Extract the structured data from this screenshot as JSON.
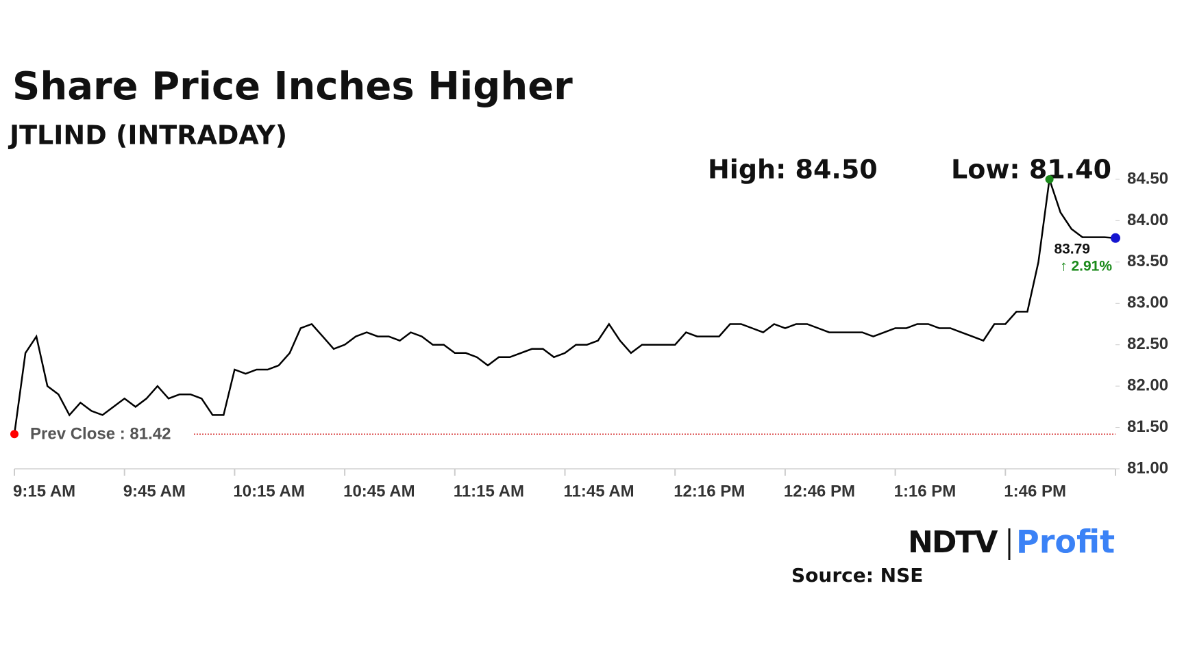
{
  "chart_data": {
    "type": "line",
    "title": "Share Price Inches Higher",
    "subtitle": "JTLIND (INTRADAY)",
    "high_label": "High: 84.50",
    "low_label": "Low: 81.40",
    "prev_close": {
      "value": 81.42,
      "label": "Prev Close : 81.42"
    },
    "change_label": "↑ 2.91%",
    "source": "Source: NSE",
    "logo": [
      "NDTV",
      "Profit"
    ],
    "color": "#000000",
    "categories": [
      "9:15 AM",
      null,
      null,
      null,
      null,
      null,
      null,
      null,
      null,
      null,
      "9:45 AM",
      null,
      null,
      null,
      null,
      null,
      null,
      null,
      null,
      null,
      "10:15 AM",
      null,
      null,
      null,
      null,
      null,
      null,
      null,
      null,
      null,
      "10:45 AM",
      null,
      null,
      null,
      null,
      null,
      null,
      null,
      null,
      null,
      "11:15 AM",
      null,
      null,
      null,
      null,
      null,
      null,
      null,
      null,
      null,
      "11:45 AM",
      null,
      null,
      null,
      null,
      null,
      null,
      null,
      null,
      null,
      "12:16 PM",
      null,
      null,
      null,
      null,
      null,
      null,
      null,
      null,
      null,
      "12:46 PM",
      null,
      null,
      null,
      null,
      null,
      null,
      null,
      null,
      null,
      "1:16 PM",
      null,
      null,
      null,
      null,
      null,
      null,
      null,
      null,
      null,
      "1:46 PM",
      null,
      null,
      null,
      null,
      null,
      null,
      null,
      null,
      null,
      null
    ],
    "values": [
      81.42,
      82.4,
      82.6,
      82.0,
      81.9,
      81.65,
      81.8,
      81.7,
      81.65,
      81.75,
      81.85,
      81.75,
      81.85,
      82.0,
      81.85,
      81.9,
      81.9,
      81.85,
      81.65,
      81.65,
      82.2,
      82.15,
      82.2,
      82.2,
      82.25,
      82.4,
      82.7,
      82.75,
      82.6,
      82.45,
      82.5,
      82.6,
      82.65,
      82.6,
      82.6,
      82.55,
      82.65,
      82.6,
      82.5,
      82.5,
      82.4,
      82.4,
      82.35,
      82.25,
      82.35,
      82.35,
      82.4,
      82.45,
      82.45,
      82.35,
      82.4,
      82.5,
      82.5,
      82.55,
      82.75,
      82.55,
      82.4,
      82.5,
      82.5,
      82.5,
      82.5,
      82.65,
      82.6,
      82.6,
      82.6,
      82.75,
      82.75,
      82.7,
      82.65,
      82.75,
      82.7,
      82.75,
      82.75,
      82.7,
      82.65,
      82.65,
      82.65,
      82.65,
      82.6,
      82.65,
      82.7,
      82.7,
      82.75,
      82.75,
      82.7,
      82.7,
      82.65,
      82.6,
      82.55,
      82.75,
      82.75,
      82.9,
      82.9,
      83.5,
      84.5,
      84.1,
      83.9,
      83.8,
      83.8,
      83.8,
      83.79
    ],
    "ylim": [
      81,
      84.5
    ],
    "yticks": [
      {
        "value": 81,
        "label": "81.00"
      },
      {
        "value": 81.5,
        "label": "81.50"
      },
      {
        "value": 82,
        "label": "82.00"
      },
      {
        "value": 82.5,
        "label": "82.50"
      },
      {
        "value": 83,
        "label": "83.00"
      },
      {
        "value": 83.5,
        "label": "83.50"
      },
      {
        "value": 84,
        "label": "84.00"
      },
      {
        "value": 84.5,
        "label": "84.50"
      }
    ]
  }
}
